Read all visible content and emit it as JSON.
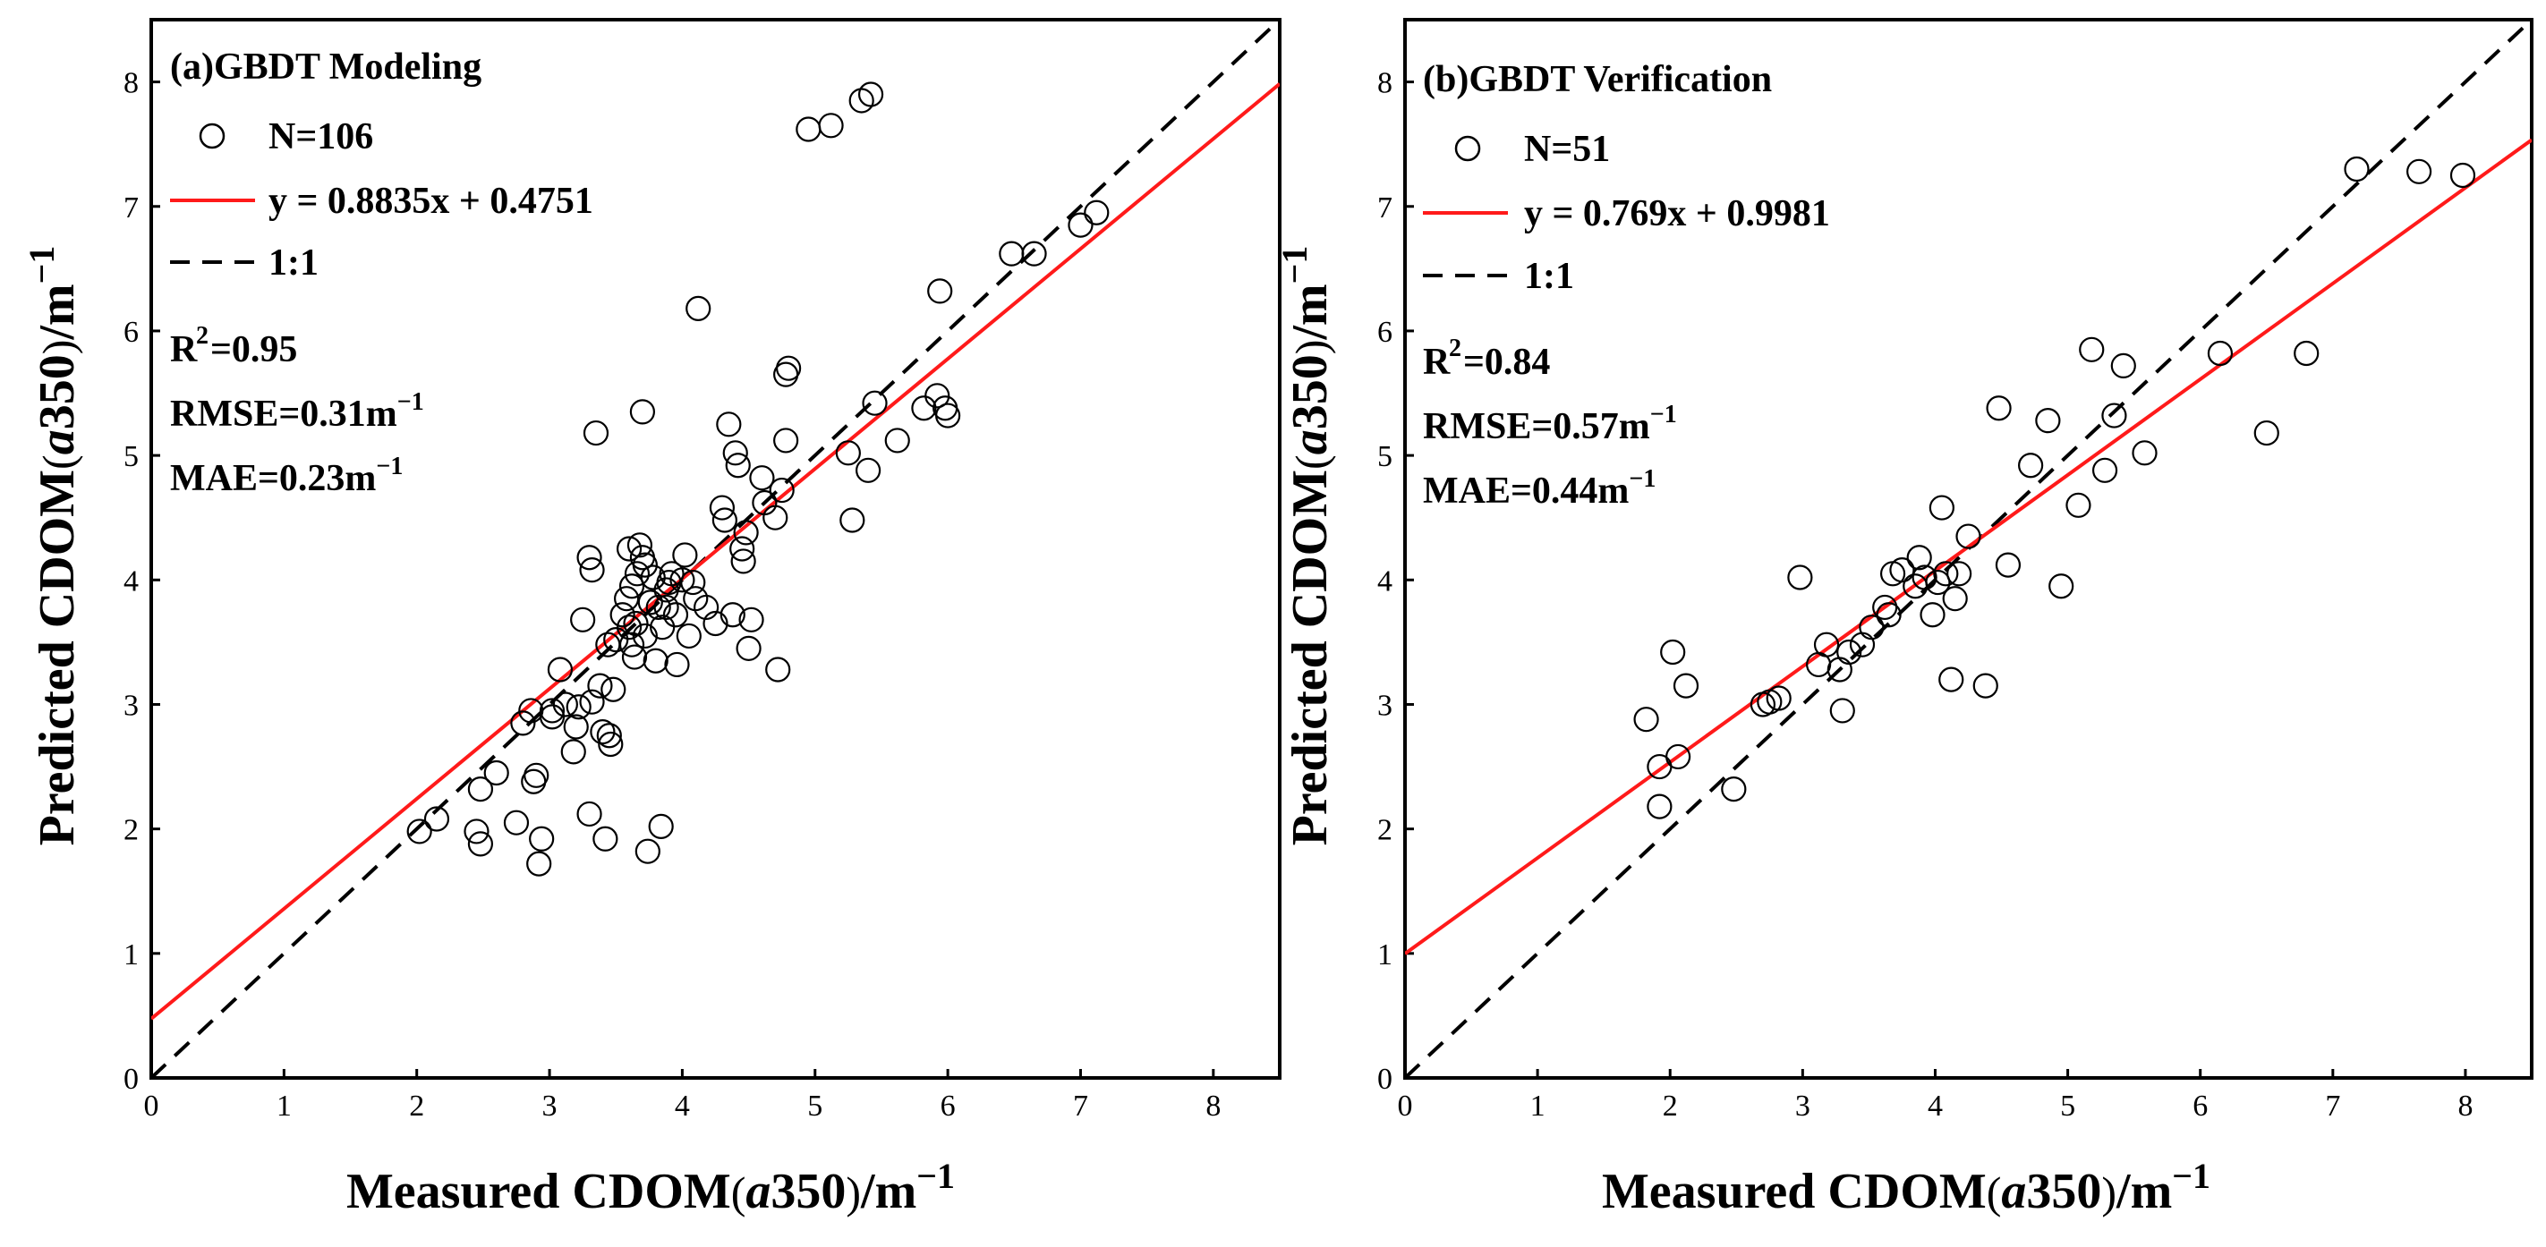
{
  "chart_data": [
    {
      "type": "scatter",
      "title": "(a)GBDT Modeling",
      "xlabel": "Measured CDOM(a350)/m-1",
      "ylabel": "Predicted CDOM(a350)/m-1",
      "xlim": [
        0,
        8.5
      ],
      "ylim": [
        0,
        8.5
      ],
      "xticks": [
        "0",
        "1",
        "2",
        "3",
        "4",
        "5",
        "6",
        "7",
        "8"
      ],
      "yticks": [
        "0",
        "1",
        "2",
        "3",
        "4",
        "5",
        "6",
        "7",
        "8"
      ],
      "legend": {
        "n_label": "N=106",
        "fit_label": "y = 0.8835x + 0.4751",
        "ref_label": "1:1",
        "r2_label": "=0.95",
        "rmse_label": "RMSE=0.31m",
        "mae_label": "MAE=0.23m"
      },
      "fit": {
        "slope": 0.8835,
        "intercept": 0.4751
      },
      "points": [
        [
          2.02,
          1.98
        ],
        [
          2.15,
          2.08
        ],
        [
          2.45,
          1.98
        ],
        [
          2.48,
          1.88
        ],
        [
          2.48,
          2.32
        ],
        [
          2.6,
          2.45
        ],
        [
          2.75,
          2.05
        ],
        [
          2.8,
          2.85
        ],
        [
          2.88,
          2.38
        ],
        [
          2.9,
          2.43
        ],
        [
          2.92,
          1.72
        ],
        [
          2.94,
          1.92
        ],
        [
          3.02,
          2.95
        ],
        [
          3.08,
          3.28
        ],
        [
          3.12,
          3.0
        ],
        [
          3.18,
          2.62
        ],
        [
          3.2,
          2.82
        ],
        [
          3.22,
          2.98
        ],
        [
          3.25,
          3.68
        ],
        [
          3.3,
          4.18
        ],
        [
          3.3,
          2.12
        ],
        [
          3.32,
          3.02
        ],
        [
          3.32,
          4.08
        ],
        [
          3.35,
          5.18
        ],
        [
          3.38,
          3.15
        ],
        [
          3.4,
          2.78
        ],
        [
          3.42,
          1.92
        ],
        [
          3.45,
          2.75
        ],
        [
          3.46,
          2.68
        ],
        [
          3.48,
          3.12
        ],
        [
          3.5,
          3.52
        ],
        [
          3.55,
          3.72
        ],
        [
          3.58,
          3.85
        ],
        [
          3.6,
          4.25
        ],
        [
          3.62,
          3.48
        ],
        [
          3.62,
          3.95
        ],
        [
          3.65,
          3.65
        ],
        [
          3.66,
          4.05
        ],
        [
          3.68,
          4.28
        ],
        [
          3.7,
          4.18
        ],
        [
          3.7,
          5.35
        ],
        [
          3.72,
          4.12
        ],
        [
          3.72,
          3.55
        ],
        [
          3.74,
          1.82
        ],
        [
          3.76,
          3.82
        ],
        [
          3.78,
          4.02
        ],
        [
          3.8,
          3.35
        ],
        [
          3.82,
          3.78
        ],
        [
          3.84,
          2.02
        ],
        [
          3.85,
          3.62
        ],
        [
          3.88,
          3.92
        ],
        [
          3.9,
          3.98
        ],
        [
          3.92,
          4.05
        ],
        [
          3.95,
          3.72
        ],
        [
          3.96,
          3.32
        ],
        [
          4.0,
          4.0
        ],
        [
          4.02,
          4.2
        ],
        [
          4.05,
          3.55
        ],
        [
          4.1,
          3.85
        ],
        [
          4.12,
          6.18
        ],
        [
          4.18,
          3.78
        ],
        [
          4.25,
          3.65
        ],
        [
          4.3,
          4.58
        ],
        [
          4.35,
          5.25
        ],
        [
          4.38,
          3.72
        ],
        [
          4.4,
          5.02
        ],
        [
          4.42,
          4.92
        ],
        [
          4.45,
          4.25
        ],
        [
          4.46,
          4.15
        ],
        [
          4.48,
          4.38
        ],
        [
          4.5,
          3.45
        ],
        [
          4.52,
          3.68
        ],
        [
          4.6,
          4.82
        ],
        [
          4.62,
          4.62
        ],
        [
          4.7,
          4.5
        ],
        [
          4.72,
          3.28
        ],
        [
          4.75,
          4.72
        ],
        [
          4.78,
          5.12
        ],
        [
          4.78,
          5.65
        ],
        [
          4.8,
          5.7
        ],
        [
          4.95,
          7.62
        ],
        [
          5.12,
          7.65
        ],
        [
          5.25,
          5.02
        ],
        [
          5.28,
          4.48
        ],
        [
          5.35,
          7.85
        ],
        [
          5.4,
          4.88
        ],
        [
          5.42,
          7.9
        ],
        [
          5.45,
          5.42
        ],
        [
          5.62,
          5.12
        ],
        [
          5.82,
          5.38
        ],
        [
          5.92,
          5.48
        ],
        [
          5.94,
          6.32
        ],
        [
          5.98,
          5.38
        ],
        [
          6.0,
          5.32
        ],
        [
          6.48,
          6.62
        ],
        [
          6.65,
          6.62
        ],
        [
          7.0,
          6.85
        ],
        [
          7.12,
          6.95
        ],
        [
          3.6,
          3.62
        ],
        [
          3.88,
          3.78
        ],
        [
          4.08,
          3.98
        ],
        [
          3.44,
          3.48
        ],
        [
          4.32,
          4.48
        ],
        [
          3.64,
          3.38
        ],
        [
          3.02,
          2.9
        ],
        [
          2.86,
          2.95
        ]
      ]
    },
    {
      "type": "scatter",
      "title": "(b)GBDT Verification",
      "xlabel": "Measured CDOM(a350)/m-1",
      "ylabel": "Predicted CDOM(a350)/m-1",
      "xlim": [
        0,
        8.5
      ],
      "ylim": [
        0,
        8.5
      ],
      "xticks": [
        "0",
        "1",
        "2",
        "3",
        "4",
        "5",
        "6",
        "7",
        "8"
      ],
      "yticks": [
        "0",
        "1",
        "2",
        "3",
        "4",
        "5",
        "6",
        "7",
        "8"
      ],
      "legend": {
        "n_label": "N=51",
        "fit_label": "y = 0.769x + 0.9981",
        "ref_label": "1:1",
        "r2_label": "=0.84",
        "rmse_label": "RMSE=0.57m",
        "mae_label": "MAE=0.44m"
      },
      "fit": {
        "slope": 0.769,
        "intercept": 0.9981
      },
      "points": [
        [
          1.82,
          2.88
        ],
        [
          1.92,
          2.5
        ],
        [
          1.92,
          2.18
        ],
        [
          2.02,
          3.42
        ],
        [
          2.06,
          2.58
        ],
        [
          2.12,
          3.15
        ],
        [
          2.48,
          2.32
        ],
        [
          2.75,
          3.02
        ],
        [
          2.82,
          3.05
        ],
        [
          2.98,
          4.02
        ],
        [
          3.12,
          3.32
        ],
        [
          3.18,
          3.48
        ],
        [
          3.28,
          3.28
        ],
        [
          3.3,
          2.95
        ],
        [
          3.45,
          3.48
        ],
        [
          3.52,
          3.62
        ],
        [
          3.62,
          3.78
        ],
        [
          3.65,
          3.72
        ],
        [
          3.68,
          4.05
        ],
        [
          3.75,
          4.08
        ],
        [
          3.85,
          3.95
        ],
        [
          3.88,
          4.18
        ],
        [
          3.98,
          3.72
        ],
        [
          4.05,
          4.58
        ],
        [
          4.08,
          4.05
        ],
        [
          4.12,
          3.2
        ],
        [
          4.15,
          3.85
        ],
        [
          4.18,
          4.05
        ],
        [
          4.25,
          4.35
        ],
        [
          4.38,
          3.15
        ],
        [
          4.48,
          5.38
        ],
        [
          4.55,
          4.12
        ],
        [
          4.72,
          4.92
        ],
        [
          4.85,
          5.28
        ],
        [
          4.95,
          3.95
        ],
        [
          5.08,
          4.6
        ],
        [
          5.18,
          5.85
        ],
        [
          5.28,
          4.88
        ],
        [
          5.35,
          5.32
        ],
        [
          5.42,
          5.72
        ],
        [
          5.58,
          5.02
        ],
        [
          6.15,
          5.82
        ],
        [
          6.5,
          5.18
        ],
        [
          6.8,
          5.82
        ],
        [
          7.18,
          7.3
        ],
        [
          7.65,
          7.28
        ],
        [
          7.98,
          7.25
        ],
        [
          3.35,
          3.42
        ],
        [
          3.92,
          4.02
        ],
        [
          4.02,
          3.98
        ],
        [
          2.7,
          3.0
        ]
      ]
    }
  ]
}
